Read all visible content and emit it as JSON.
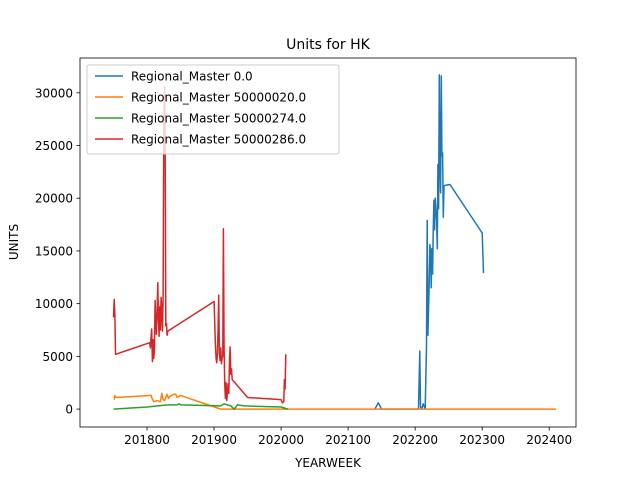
{
  "chart_data": {
    "type": "line",
    "title": "Units for HK",
    "xlabel": "YEARWEEK",
    "ylabel": "UNITS",
    "xlim": [
      201700,
      202440
    ],
    "ylim": [
      -1700,
      33300
    ],
    "xticks": [
      201800,
      201900,
      202000,
      202100,
      202200,
      202300,
      202400
    ],
    "yticks": [
      0,
      5000,
      10000,
      15000,
      20000,
      25000,
      30000
    ],
    "grid": false,
    "legend": "top-left",
    "series": [
      {
        "name": "Regional_Master 0.0",
        "color": "#1f77b4",
        "points": [
          [
            202140,
            0
          ],
          [
            202145,
            600
          ],
          [
            202150,
            0
          ],
          [
            202205,
            0
          ],
          [
            202207,
            5500
          ],
          [
            202208,
            200
          ],
          [
            202210,
            0
          ],
          [
            202212,
            500
          ],
          [
            202215,
            0
          ],
          [
            202217,
            6000
          ],
          [
            202218,
            17900
          ],
          [
            202219,
            7000
          ],
          [
            202220,
            9300
          ],
          [
            202221,
            12000
          ],
          [
            202222,
            15600
          ],
          [
            202223,
            15000
          ],
          [
            202224,
            11500
          ],
          [
            202225,
            15200
          ],
          [
            202226,
            12800
          ],
          [
            202227,
            16800
          ],
          [
            202228,
            19800
          ],
          [
            202229,
            17000
          ],
          [
            202230,
            20000
          ],
          [
            202232,
            18000
          ],
          [
            202233,
            15200
          ],
          [
            202234,
            23200
          ],
          [
            202235,
            19000
          ],
          [
            202236,
            31700
          ],
          [
            202237,
            23800
          ],
          [
            202238,
            20500
          ],
          [
            202239,
            31600
          ],
          [
            202240,
            24000
          ],
          [
            202241,
            24300
          ],
          [
            202242,
            18200
          ],
          [
            202243,
            21200
          ],
          [
            202252,
            21300
          ],
          [
            202300,
            16700
          ],
          [
            202302,
            12900
          ]
        ]
      },
      {
        "name": "Regional_Master 50000020.0",
        "color": "#ff7f0e",
        "points": [
          [
            201751,
            900
          ],
          [
            201752,
            1300
          ],
          [
            201753,
            1100
          ],
          [
            201806,
            1300
          ],
          [
            201807,
            1100
          ],
          [
            201810,
            700
          ],
          [
            201815,
            800
          ],
          [
            201820,
            700
          ],
          [
            201822,
            1500
          ],
          [
            201824,
            900
          ],
          [
            201826,
            800
          ],
          [
            201830,
            1400
          ],
          [
            201832,
            1000
          ],
          [
            201834,
            1200
          ],
          [
            201840,
            1400
          ],
          [
            201843,
            1400
          ],
          [
            201845,
            1100
          ],
          [
            201850,
            1300
          ],
          [
            201905,
            100
          ],
          [
            201910,
            0
          ],
          [
            202000,
            0
          ],
          [
            202100,
            0
          ],
          [
            202200,
            0
          ],
          [
            202300,
            0
          ],
          [
            202400,
            0
          ],
          [
            202410,
            0
          ]
        ]
      },
      {
        "name": "Regional_Master 50000274.0",
        "color": "#2ca02c",
        "points": [
          [
            201750,
            0
          ],
          [
            201800,
            200
          ],
          [
            201830,
            400
          ],
          [
            201845,
            400
          ],
          [
            201848,
            500
          ],
          [
            201850,
            400
          ],
          [
            201910,
            300
          ],
          [
            201915,
            500
          ],
          [
            201920,
            400
          ],
          [
            201925,
            300
          ],
          [
            201930,
            0
          ],
          [
            201935,
            400
          ],
          [
            201945,
            300
          ],
          [
            202000,
            200
          ],
          [
            202010,
            0
          ]
        ]
      },
      {
        "name": "Regional_Master 50000286.0",
        "color": "#d62728",
        "points": [
          [
            201750,
            8700
          ],
          [
            201751,
            10400
          ],
          [
            201752,
            8900
          ],
          [
            201753,
            5200
          ],
          [
            201804,
            6300
          ],
          [
            201805,
            5800
          ],
          [
            201806,
            6800
          ],
          [
            201807,
            7600
          ],
          [
            201808,
            4500
          ],
          [
            201809,
            6600
          ],
          [
            201810,
            4800
          ],
          [
            201811,
            5500
          ],
          [
            201812,
            10300
          ],
          [
            201813,
            8700
          ],
          [
            201814,
            7100
          ],
          [
            201815,
            9000
          ],
          [
            201816,
            12000
          ],
          [
            201817,
            8700
          ],
          [
            201818,
            6900
          ],
          [
            201819,
            9700
          ],
          [
            201820,
            7500
          ],
          [
            201821,
            10600
          ],
          [
            201822,
            9400
          ],
          [
            201823,
            7400
          ],
          [
            201824,
            10500
          ],
          [
            201825,
            27000
          ],
          [
            201826,
            30600
          ],
          [
            201827,
            26900
          ],
          [
            201828,
            7900
          ],
          [
            201829,
            8100
          ],
          [
            201830,
            7000
          ],
          [
            201831,
            7400
          ],
          [
            201900,
            10200
          ],
          [
            201902,
            6100
          ],
          [
            201903,
            4800
          ],
          [
            201904,
            4400
          ],
          [
            201905,
            5200
          ],
          [
            201906,
            7700
          ],
          [
            201907,
            10800
          ],
          [
            201908,
            5300
          ],
          [
            201909,
            4600
          ],
          [
            201910,
            5800
          ],
          [
            201911,
            4300
          ],
          [
            201912,
            4800
          ],
          [
            201913,
            5100
          ],
          [
            201914,
            17100
          ],
          [
            201915,
            5600
          ],
          [
            201916,
            2200
          ],
          [
            201917,
            1000
          ],
          [
            201918,
            2500
          ],
          [
            201919,
            800
          ],
          [
            201920,
            1700
          ],
          [
            201921,
            2400
          ],
          [
            201922,
            1500
          ],
          [
            201923,
            4600
          ],
          [
            201924,
            5900
          ],
          [
            201925,
            3300
          ],
          [
            201926,
            3800
          ],
          [
            201927,
            2800
          ],
          [
            201950,
            1100
          ],
          [
            202000,
            900
          ],
          [
            202002,
            600
          ],
          [
            202004,
            700
          ],
          [
            202005,
            2800
          ],
          [
            202006,
            1900
          ],
          [
            202007,
            5200
          ]
        ]
      }
    ]
  }
}
